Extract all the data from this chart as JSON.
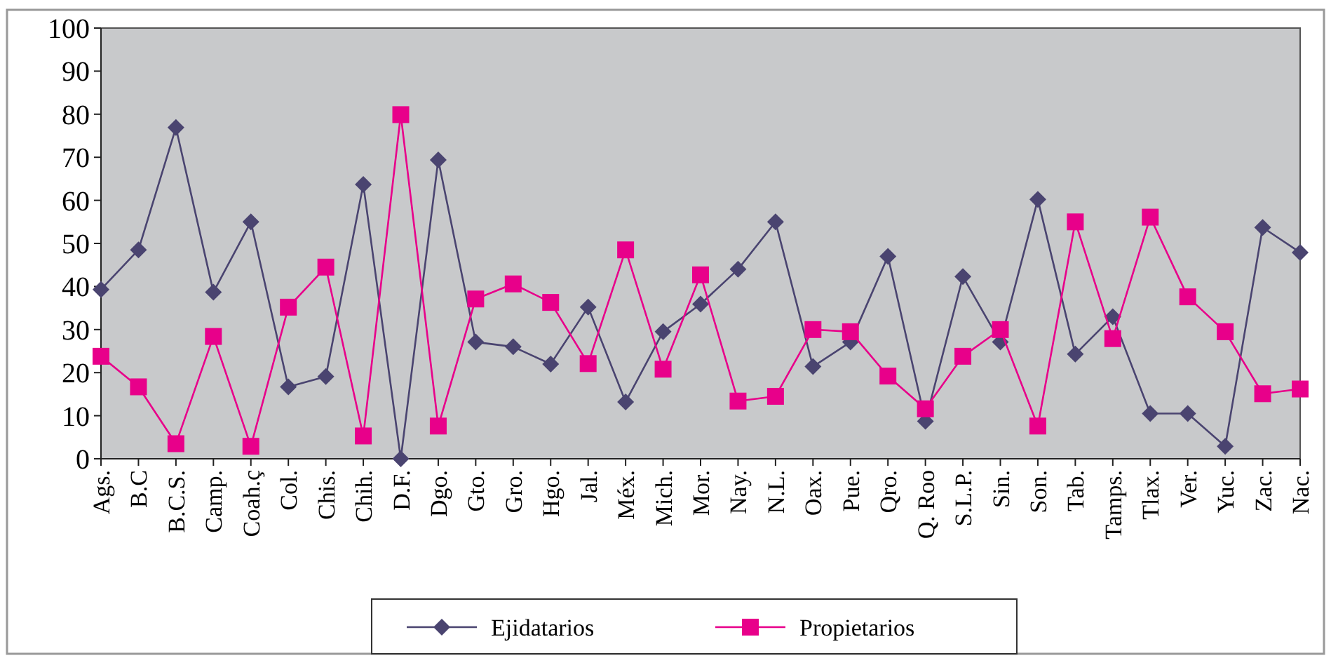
{
  "chart_data": {
    "type": "line",
    "categories": [
      "Ags.",
      "B.C",
      "B.C.S.",
      "Camp.",
      "Coah.ç",
      "Col.",
      "Chis.",
      "Chih.",
      "D.F.",
      "Dgo.",
      "Gto.",
      "Gro.",
      "Hgo.",
      "Jal.",
      "Méx.",
      "Mich.",
      "Mor.",
      "Nay.",
      "N.L.",
      "Oax.",
      "Pue.",
      "Qro.",
      "Q. Roo",
      "S.L.P.",
      "Sin.",
      "Son.",
      "Tab.",
      "Tamps.",
      "Tlax.",
      "Ver.",
      "Yuc.",
      "Zac.",
      "Nac."
    ],
    "series": [
      {
        "name": "Ejidatarios",
        "color": "#4a4470",
        "marker": "diamond",
        "values": [
          39.3,
          48.5,
          76.9,
          38.7,
          55,
          16.7,
          19.1,
          63.7,
          0,
          69.4,
          27.1,
          26,
          22,
          35.2,
          13.2,
          29.5,
          35.9,
          44,
          55,
          21.4,
          27.1,
          47,
          8.7,
          42.3,
          27.1,
          60.2,
          24.3,
          33,
          10.5,
          10.5,
          2.9,
          53.7,
          47.9
        ]
      },
      {
        "name": "Propietarios",
        "color": "#e8008a",
        "marker": "square",
        "values": [
          23.8,
          16.7,
          3.5,
          28.4,
          2.9,
          35.2,
          44.5,
          5.3,
          79.9,
          7.6,
          37.1,
          40.6,
          36.3,
          22.1,
          48.5,
          20.8,
          42.7,
          13.4,
          14.5,
          30,
          29.5,
          19.2,
          11.6,
          23.8,
          30,
          7.6,
          55,
          27.9,
          56.1,
          37.6,
          29.5,
          15.1,
          16.2
        ]
      }
    ],
    "ylim": [
      0,
      100
    ],
    "yticks": [
      0,
      10,
      20,
      30,
      40,
      50,
      60,
      70,
      80,
      90,
      100
    ],
    "grid": false,
    "legend": "bottom"
  }
}
